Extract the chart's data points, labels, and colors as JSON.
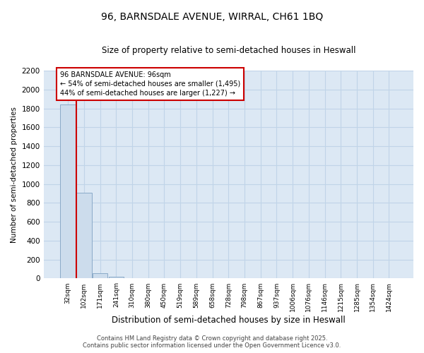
{
  "title1": "96, BARNSDALE AVENUE, WIRRAL, CH61 1BQ",
  "title2": "Size of property relative to semi-detached houses in Heswall",
  "xlabel": "Distribution of semi-detached houses by size in Heswall",
  "ylabel": "Number of semi-detached properties",
  "categories": [
    "32sqm",
    "102sqm",
    "171sqm",
    "241sqm",
    "310sqm",
    "380sqm",
    "450sqm",
    "519sqm",
    "589sqm",
    "658sqm",
    "728sqm",
    "798sqm",
    "867sqm",
    "937sqm",
    "1006sqm",
    "1076sqm",
    "1146sqm",
    "1215sqm",
    "1285sqm",
    "1354sqm",
    "1424sqm"
  ],
  "values": [
    1840,
    910,
    55,
    20,
    0,
    0,
    0,
    0,
    0,
    0,
    0,
    0,
    0,
    0,
    0,
    0,
    0,
    0,
    0,
    0,
    0
  ],
  "bar_color": "#ccdcec",
  "bar_edge_color": "#8aaac8",
  "ylim": [
    0,
    2200
  ],
  "yticks": [
    0,
    200,
    400,
    600,
    800,
    1000,
    1200,
    1400,
    1600,
    1800,
    2000,
    2200
  ],
  "vline_color": "#cc0000",
  "vline_position": 0.5,
  "annotation_text1": "96 BARNSDALE AVENUE: 96sqm",
  "annotation_text2": "← 54% of semi-detached houses are smaller (1,495)",
  "annotation_text3": "44% of semi-detached houses are larger (1,227) →",
  "annotation_box_color": "#cc0000",
  "grid_color": "#c0d4e8",
  "bg_color": "#dce8f4",
  "footer1": "Contains HM Land Registry data © Crown copyright and database right 2025.",
  "footer2": "Contains public sector information licensed under the Open Government Licence v3.0."
}
